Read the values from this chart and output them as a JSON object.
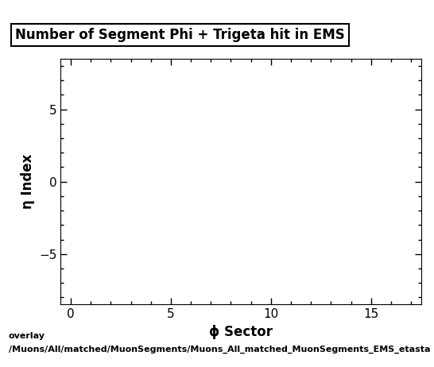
{
  "title": "Number of Segment Phi + Trigeta hit in EMS",
  "xlabel": "ϕ Sector",
  "ylabel": "η Index",
  "xlim": [
    -0.5,
    17.5
  ],
  "ylim": [
    -8.5,
    8.5
  ],
  "xticks": [
    0,
    5,
    10,
    15
  ],
  "yticks": [
    -5,
    0,
    5
  ],
  "background_color": "#ffffff",
  "plot_bg_color": "#ffffff",
  "caption_line1": "overlay",
  "caption_line2": "/Muons/All/matched/MuonSegments/Muons_All_matched_MuonSegments_EMS_etasta",
  "title_fontsize": 12,
  "axis_label_fontsize": 12,
  "tick_fontsize": 11,
  "caption_fontsize": 8
}
